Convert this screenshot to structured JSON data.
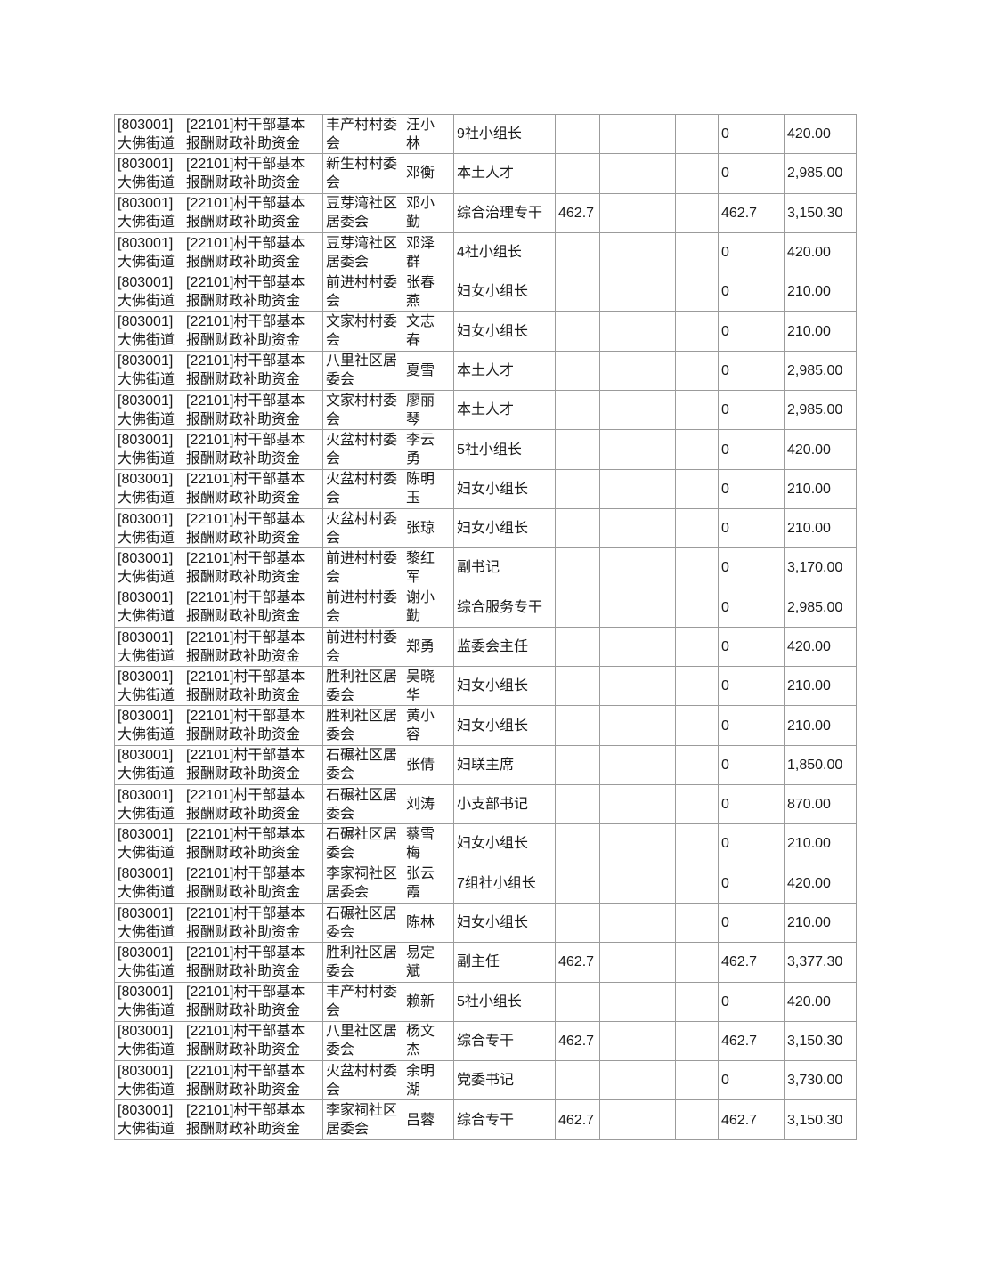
{
  "page": {
    "background_color": "#ffffff",
    "text_color": "#1a1a1a",
    "border_color": "#9b9b9b"
  },
  "table": {
    "rows": [
      {
        "district": "[803001]\n大佛街道",
        "program": "[22101]村干部基本\n报酬财政补助资金",
        "org": "丰产村村委\n会",
        "name": "汪小\n林",
        "position": "9社小组长",
        "c6": "",
        "c7": "",
        "c8": "",
        "c9": "0",
        "amount": "420.00"
      },
      {
        "district": "[803001]\n大佛街道",
        "program": "[22101]村干部基本\n报酬财政补助资金",
        "org": "新生村村委\n会",
        "name": "邓衡",
        "position": "本土人才",
        "c6": "",
        "c7": "",
        "c8": "",
        "c9": "0",
        "amount": "2,985.00"
      },
      {
        "district": "[803001]\n大佛街道",
        "program": "[22101]村干部基本\n报酬财政补助资金",
        "org": "豆芽湾社区\n居委会",
        "name": "邓小\n勤",
        "position": "综合治理专干",
        "c6": "462.7",
        "c7": "",
        "c8": "",
        "c9": "462.7",
        "amount": "3,150.30"
      },
      {
        "district": "[803001]\n大佛街道",
        "program": "[22101]村干部基本\n报酬财政补助资金",
        "org": "豆芽湾社区\n居委会",
        "name": "邓泽\n群",
        "position": "4社小组长",
        "c6": "",
        "c7": "",
        "c8": "",
        "c9": "0",
        "amount": "420.00"
      },
      {
        "district": "[803001]\n大佛街道",
        "program": "[22101]村干部基本\n报酬财政补助资金",
        "org": "前进村村委\n会",
        "name": "张春\n燕",
        "position": "妇女小组长",
        "c6": "",
        "c7": "",
        "c8": "",
        "c9": "0",
        "amount": "210.00"
      },
      {
        "district": "[803001]\n大佛街道",
        "program": "[22101]村干部基本\n报酬财政补助资金",
        "org": "文家村村委\n会",
        "name": "文志\n春",
        "position": "妇女小组长",
        "c6": "",
        "c7": "",
        "c8": "",
        "c9": "0",
        "amount": "210.00"
      },
      {
        "district": "[803001]\n大佛街道",
        "program": "[22101]村干部基本\n报酬财政补助资金",
        "org": "八里社区居\n委会",
        "name": "夏雪",
        "position": "本土人才",
        "c6": "",
        "c7": "",
        "c8": "",
        "c9": "0",
        "amount": "2,985.00"
      },
      {
        "district": "[803001]\n大佛街道",
        "program": "[22101]村干部基本\n报酬财政补助资金",
        "org": "文家村村委\n会",
        "name": "廖丽\n琴",
        "position": "本土人才",
        "c6": "",
        "c7": "",
        "c8": "",
        "c9": "0",
        "amount": "2,985.00"
      },
      {
        "district": "[803001]\n大佛街道",
        "program": "[22101]村干部基本\n报酬财政补助资金",
        "org": "火盆村村委\n会",
        "name": "李云\n勇",
        "position": "5社小组长",
        "c6": "",
        "c7": "",
        "c8": "",
        "c9": "0",
        "amount": "420.00"
      },
      {
        "district": "[803001]\n大佛街道",
        "program": "[22101]村干部基本\n报酬财政补助资金",
        "org": "火盆村村委\n会",
        "name": "陈明\n玉",
        "position": "妇女小组长",
        "c6": "",
        "c7": "",
        "c8": "",
        "c9": "0",
        "amount": "210.00"
      },
      {
        "district": "[803001]\n大佛街道",
        "program": "[22101]村干部基本\n报酬财政补助资金",
        "org": "火盆村村委\n会",
        "name": "张琼",
        "position": "妇女小组长",
        "c6": "",
        "c7": "",
        "c8": "",
        "c9": "0",
        "amount": "210.00"
      },
      {
        "district": "[803001]\n大佛街道",
        "program": "[22101]村干部基本\n报酬财政补助资金",
        "org": "前进村村委\n会",
        "name": "黎红\n军",
        "position": "副书记",
        "c6": "",
        "c7": "",
        "c8": "",
        "c9": "0",
        "amount": "3,170.00"
      },
      {
        "district": "[803001]\n大佛街道",
        "program": "[22101]村干部基本\n报酬财政补助资金",
        "org": "前进村村委\n会",
        "name": "谢小\n勤",
        "position": "综合服务专干",
        "c6": "",
        "c7": "",
        "c8": "",
        "c9": "0",
        "amount": "2,985.00"
      },
      {
        "district": "[803001]\n大佛街道",
        "program": "[22101]村干部基本\n报酬财政补助资金",
        "org": "前进村村委\n会",
        "name": "郑勇",
        "position": "监委会主任",
        "c6": "",
        "c7": "",
        "c8": "",
        "c9": "0",
        "amount": "420.00"
      },
      {
        "district": "[803001]\n大佛街道",
        "program": "[22101]村干部基本\n报酬财政补助资金",
        "org": "胜利社区居\n委会",
        "name": "吴晓\n华",
        "position": "妇女小组长",
        "c6": "",
        "c7": "",
        "c8": "",
        "c9": "0",
        "amount": "210.00"
      },
      {
        "district": "[803001]\n大佛街道",
        "program": "[22101]村干部基本\n报酬财政补助资金",
        "org": "胜利社区居\n委会",
        "name": "黄小\n容",
        "position": "妇女小组长",
        "c6": "",
        "c7": "",
        "c8": "",
        "c9": "0",
        "amount": "210.00"
      },
      {
        "district": "[803001]\n大佛街道",
        "program": "[22101]村干部基本\n报酬财政补助资金",
        "org": "石碾社区居\n委会",
        "name": "张倩",
        "position": "妇联主席",
        "c6": "",
        "c7": "",
        "c8": "",
        "c9": "0",
        "amount": "1,850.00"
      },
      {
        "district": "[803001]\n大佛街道",
        "program": "[22101]村干部基本\n报酬财政补助资金",
        "org": "石碾社区居\n委会",
        "name": "刘涛",
        "position": "小支部书记",
        "c6": "",
        "c7": "",
        "c8": "",
        "c9": "0",
        "amount": "870.00"
      },
      {
        "district": "[803001]\n大佛街道",
        "program": "[22101]村干部基本\n报酬财政补助资金",
        "org": "石碾社区居\n委会",
        "name": "蔡雪\n梅",
        "position": "妇女小组长",
        "c6": "",
        "c7": "",
        "c8": "",
        "c9": "0",
        "amount": "210.00"
      },
      {
        "district": "[803001]\n大佛街道",
        "program": "[22101]村干部基本\n报酬财政补助资金",
        "org": "李家祠社区\n居委会",
        "name": "张云\n霞",
        "position": "7组社小组长",
        "c6": "",
        "c7": "",
        "c8": "",
        "c9": "0",
        "amount": "420.00"
      },
      {
        "district": "[803001]\n大佛街道",
        "program": "[22101]村干部基本\n报酬财政补助资金",
        "org": "石碾社区居\n委会",
        "name": "陈林",
        "position": "妇女小组长",
        "c6": "",
        "c7": "",
        "c8": "",
        "c9": "0",
        "amount": "210.00"
      },
      {
        "district": "[803001]\n大佛街道",
        "program": "[22101]村干部基本\n报酬财政补助资金",
        "org": "胜利社区居\n委会",
        "name": "易定\n斌",
        "position": "副主任",
        "c6": "462.7",
        "c7": "",
        "c8": "",
        "c9": "462.7",
        "amount": "3,377.30"
      },
      {
        "district": "[803001]\n大佛街道",
        "program": "[22101]村干部基本\n报酬财政补助资金",
        "org": "丰产村村委\n会",
        "name": "赖新",
        "position": "5社小组长",
        "c6": "",
        "c7": "",
        "c8": "",
        "c9": "0",
        "amount": "420.00"
      },
      {
        "district": "[803001]\n大佛街道",
        "program": "[22101]村干部基本\n报酬财政补助资金",
        "org": "八里社区居\n委会",
        "name": "杨文\n杰",
        "position": "综合专干",
        "c6": "462.7",
        "c7": "",
        "c8": "",
        "c9": "462.7",
        "amount": "3,150.30"
      },
      {
        "district": "[803001]\n大佛街道",
        "program": "[22101]村干部基本\n报酬财政补助资金",
        "org": "火盆村村委\n会",
        "name": "余明\n湖",
        "position": "党委书记",
        "c6": "",
        "c7": "",
        "c8": "",
        "c9": "0",
        "amount": "3,730.00"
      },
      {
        "district": "[803001]\n大佛街道",
        "program": "[22101]村干部基本\n报酬财政补助资金",
        "org": "李家祠社区\n居委会",
        "name": "吕蓉",
        "position": "综合专干",
        "c6": "462.7",
        "c7": "",
        "c8": "",
        "c9": "462.7",
        "amount": "3,150.30"
      }
    ]
  }
}
